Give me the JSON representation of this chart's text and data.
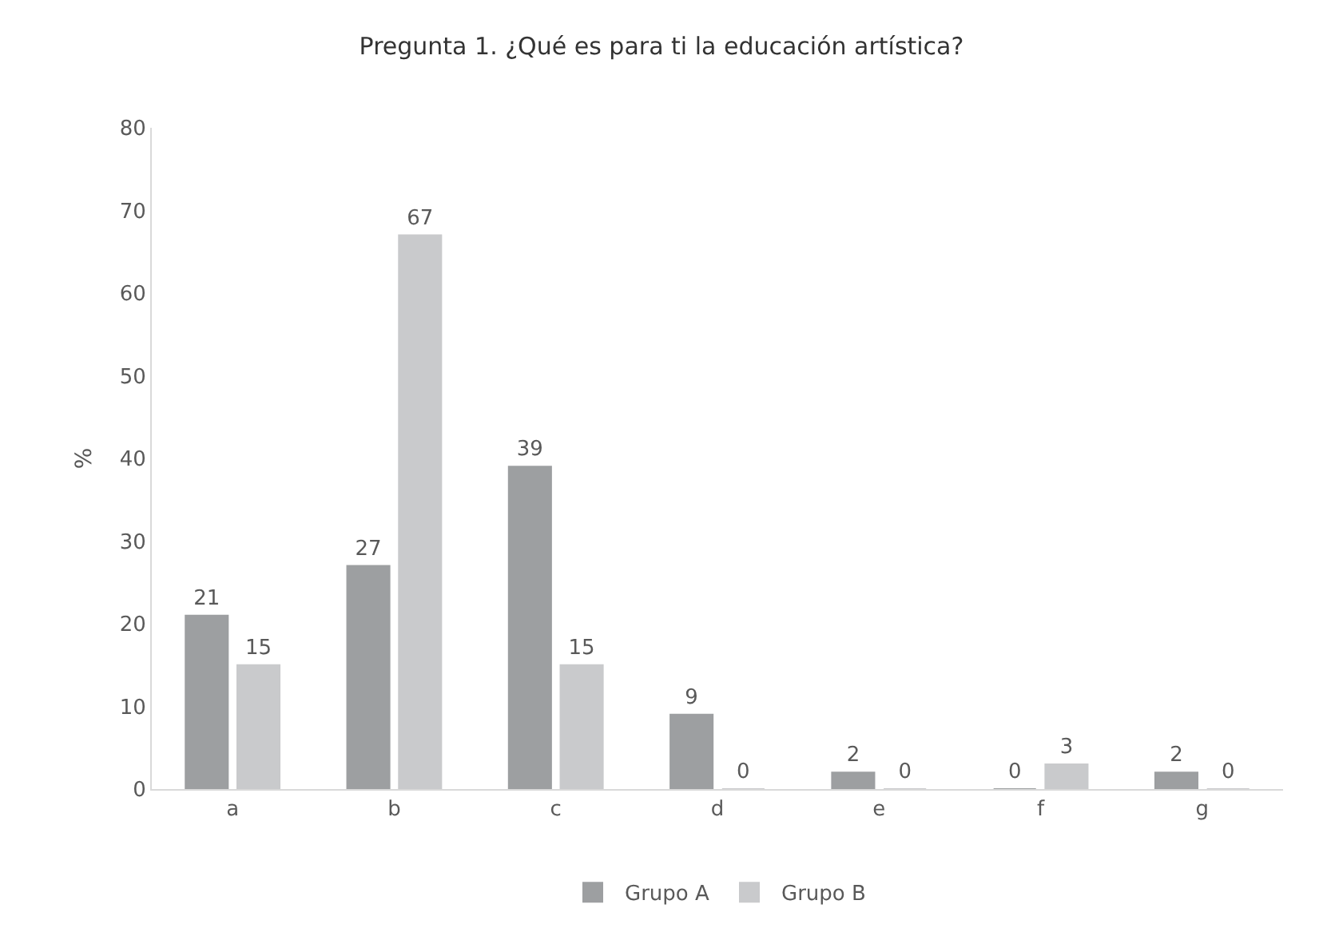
{
  "chart_data": {
    "type": "bar",
    "title": "Pregunta 1. ¿Qué es para ti la educación artística?",
    "ylabel": "%",
    "categories": [
      "a",
      "b",
      "c",
      "d",
      "e",
      "f",
      "g"
    ],
    "series": [
      {
        "name": "Grupo A",
        "color": "#9d9fa1",
        "values": [
          21,
          27,
          39,
          9,
          2,
          0,
          2
        ]
      },
      {
        "name": "Grupo B",
        "color": "#c9cacc",
        "values": [
          15,
          67,
          15,
          0,
          0,
          3,
          0
        ]
      }
    ],
    "ylim": [
      0,
      80
    ],
    "yticks": [
      0,
      10,
      20,
      30,
      40,
      50,
      60,
      70,
      80
    ],
    "grid": false,
    "legend": "bottom",
    "data_labels": true
  }
}
